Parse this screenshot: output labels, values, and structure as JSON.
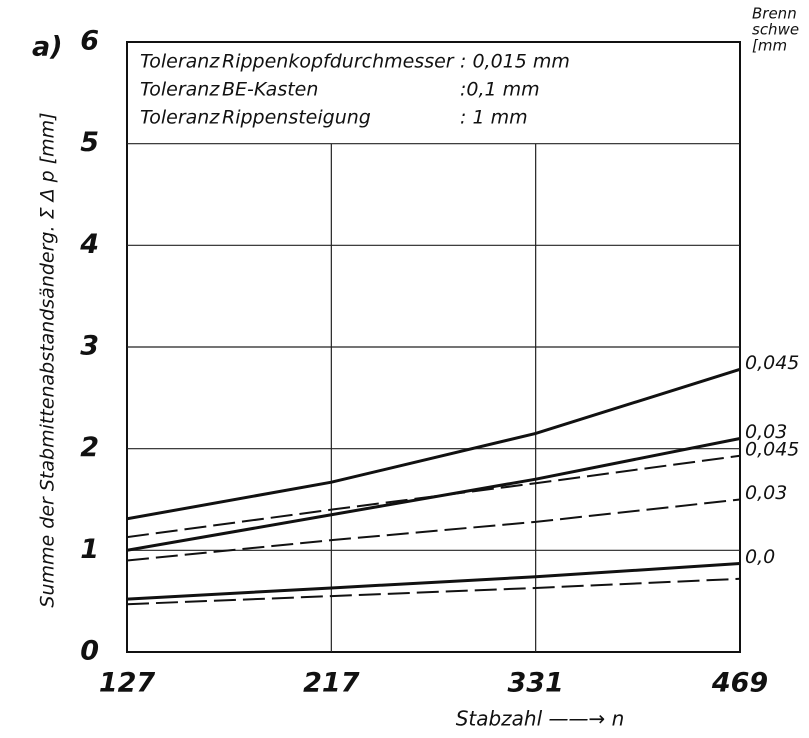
{
  "chart_data": {
    "type": "line",
    "panel_label": "a)",
    "y_label": "Summe der Stabmittenabstandsänderg. Σ Δ p [mm]",
    "x_label": "Stabzahl ——→ n",
    "legend_title": [
      "Brenn",
      "schwe",
      "[mm"
    ],
    "annotation_rows": [
      [
        "Toleranz",
        "Rippenkopfdurchmesser",
        ": 0,015 mm"
      ],
      [
        "Toleranz",
        "BE-Kasten",
        ":0,1    mm"
      ],
      [
        "Toleranz",
        "Rippensteigung",
        ": 1     mm"
      ]
    ],
    "categories": [
      "127",
      "217",
      "331",
      "469"
    ],
    "ylim": [
      0,
      6
    ],
    "yticks": [
      0,
      1,
      2,
      3,
      4,
      5,
      6
    ],
    "grid": true,
    "series": [
      {
        "name": "0,045",
        "color": "#111111",
        "style": "solid",
        "values": [
          1.31,
          1.67,
          2.15,
          2.78
        ]
      },
      {
        "name": "0,03",
        "color": "#111111",
        "style": "solid",
        "values": [
          1.0,
          1.35,
          1.7,
          2.1
        ]
      },
      {
        "name": "0,045",
        "color": "#111111",
        "style": "dashed",
        "values": [
          1.13,
          1.4,
          1.66,
          1.93
        ]
      },
      {
        "name": "0,03",
        "color": "#111111",
        "style": "dashed",
        "values": [
          0.9,
          1.1,
          1.28,
          1.5
        ]
      },
      {
        "name": "0,0",
        "color": "#111111",
        "style": "solid",
        "values": [
          0.52,
          0.63,
          0.74,
          0.87
        ]
      },
      {
        "color": "#111111",
        "style": "dashed",
        "values": [
          0.47,
          0.55,
          0.63,
          0.72
        ]
      }
    ]
  }
}
